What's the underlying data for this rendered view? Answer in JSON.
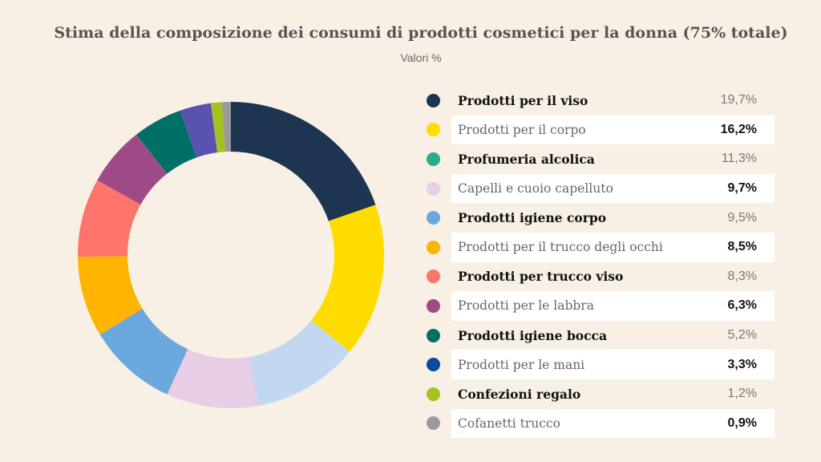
{
  "chart_data": {
    "type": "pie",
    "variant": "donut",
    "title": "Stima della composizione dei consumi di prodotti cosmetici per la donna (75% totale)",
    "subtitle": "Valori %",
    "legend_position": "right",
    "slices": [
      {
        "label": "Prodotti per il viso",
        "value": 19.7,
        "display": "19,7%",
        "color": "#1d3550",
        "legend_color": "#1d3550"
      },
      {
        "label": "Prodotti per il corpo",
        "value": 16.2,
        "display": "16,2%",
        "color": "#ffdc00",
        "legend_color": "#ffdc00"
      },
      {
        "label": "Profumeria alcolica",
        "value": 11.3,
        "display": "11,3%",
        "color": "#c2d7f0",
        "legend_color": "#2aab8e"
      },
      {
        "label": "Capelli e cuoio capelluto",
        "value": 9.7,
        "display": "9,7%",
        "color": "#e8cde6",
        "legend_color": "#e8cde6"
      },
      {
        "label": "Prodotti igiene corpo",
        "value": 9.5,
        "display": "9,5%",
        "color": "#6ba8de",
        "legend_color": "#6ba8de"
      },
      {
        "label": "Prodotti per il trucco degli occhi",
        "value": 8.5,
        "display": "8,5%",
        "color": "#ffb400",
        "legend_color": "#ffb400"
      },
      {
        "label": "Prodotti per trucco viso",
        "value": 8.3,
        "display": "8,3%",
        "color": "#ff756b",
        "legend_color": "#ff756b"
      },
      {
        "label": "Prodotti per le labbra",
        "value": 6.3,
        "display": "6,3%",
        "color": "#9e4a86",
        "legend_color": "#9e4a86"
      },
      {
        "label": "Prodotti igiene bocca",
        "value": 5.2,
        "display": "5,2%",
        "color": "#007066",
        "legend_color": "#007066"
      },
      {
        "label": "Prodotti per le mani",
        "value": 3.3,
        "display": "3,3%",
        "color": "#5a52b0",
        "legend_color": "#0b4a9c"
      },
      {
        "label": "Confezioni regalo",
        "value": 1.2,
        "display": "1,2%",
        "color": "#a5c220",
        "legend_color": "#a5c220"
      },
      {
        "label": "Cofanetti trucco",
        "value": 0.9,
        "display": "0,9%",
        "color": "#9a9a9e",
        "legend_color": "#9a9a9e"
      }
    ]
  }
}
